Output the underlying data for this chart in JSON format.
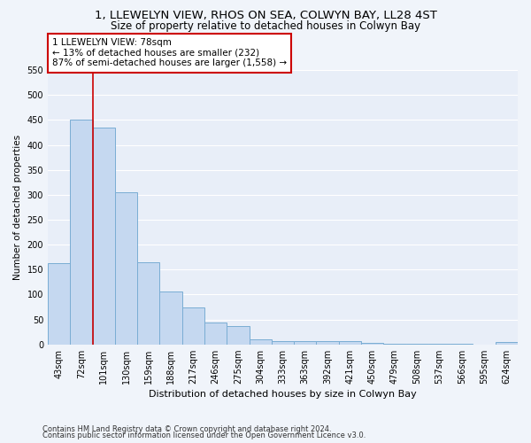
{
  "title": "1, LLEWELYN VIEW, RHOS ON SEA, COLWYN BAY, LL28 4ST",
  "subtitle": "Size of property relative to detached houses in Colwyn Bay",
  "xlabel": "Distribution of detached houses by size in Colwyn Bay",
  "ylabel": "Number of detached properties",
  "categories": [
    "43sqm",
    "72sqm",
    "101sqm",
    "130sqm",
    "159sqm",
    "188sqm",
    "217sqm",
    "246sqm",
    "275sqm",
    "304sqm",
    "333sqm",
    "363sqm",
    "392sqm",
    "421sqm",
    "450sqm",
    "479sqm",
    "508sqm",
    "537sqm",
    "566sqm",
    "595sqm",
    "624sqm"
  ],
  "values": [
    163,
    450,
    435,
    306,
    165,
    106,
    74,
    44,
    36,
    10,
    6,
    6,
    6,
    7,
    3,
    2,
    1,
    1,
    1,
    0,
    4
  ],
  "bar_color": "#c5d8f0",
  "bar_edge_color": "#7aadd4",
  "annotation_text_line1": "1 LLEWELYN VIEW: 78sqm",
  "annotation_text_line2": "← 13% of detached houses are smaller (232)",
  "annotation_text_line3": "87% of semi-detached houses are larger (1,558) →",
  "annotation_box_facecolor": "#ffffff",
  "annotation_box_edgecolor": "#cc0000",
  "redline_x": 1.5,
  "ylim": [
    0,
    550
  ],
  "yticks": [
    0,
    50,
    100,
    150,
    200,
    250,
    300,
    350,
    400,
    450,
    500,
    550
  ],
  "footnote1": "Contains HM Land Registry data © Crown copyright and database right 2024.",
  "footnote2": "Contains public sector information licensed under the Open Government Licence v3.0.",
  "background_color": "#f0f4fa",
  "plot_background_color": "#e8eef8",
  "grid_color": "#ffffff",
  "title_fontsize": 9.5,
  "subtitle_fontsize": 8.5,
  "xlabel_fontsize": 8,
  "ylabel_fontsize": 7.5,
  "tick_fontsize": 7,
  "annotation_fontsize": 7.5,
  "footnote_fontsize": 6
}
